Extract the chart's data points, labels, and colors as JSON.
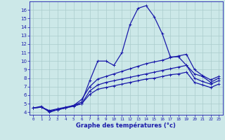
{
  "xlabel": "Graphe des températures (°c)",
  "x_ticks": [
    0,
    1,
    2,
    3,
    4,
    5,
    6,
    7,
    8,
    9,
    10,
    11,
    12,
    13,
    14,
    15,
    16,
    17,
    18,
    19,
    20,
    21,
    22,
    23
  ],
  "y_ticks": [
    4,
    5,
    6,
    7,
    8,
    9,
    10,
    11,
    12,
    13,
    14,
    15,
    16
  ],
  "ylim": [
    3.7,
    17.0
  ],
  "xlim": [
    -0.5,
    23.5
  ],
  "bg_color": "#cce8e8",
  "grid_color": "#aacccc",
  "line_color": "#1a1aaa",
  "series": [
    {
      "x": [
        0,
        1,
        2,
        3,
        4,
        5,
        6,
        7,
        8,
        9,
        10,
        11,
        12,
        13,
        14,
        15,
        16,
        17,
        18,
        19,
        20,
        21,
        22,
        23
      ],
      "y": [
        4.5,
        4.7,
        4.0,
        4.3,
        4.5,
        4.8,
        5.2,
        7.7,
        10.0,
        10.0,
        9.5,
        11.0,
        14.3,
        16.2,
        16.5,
        15.2,
        13.2,
        10.5,
        10.5,
        9.5,
        8.5,
        8.2,
        7.5,
        8.0
      ]
    },
    {
      "x": [
        0,
        1,
        2,
        3,
        4,
        5,
        6,
        7,
        8,
        9,
        10,
        11,
        12,
        13,
        14,
        15,
        16,
        17,
        18,
        19,
        20,
        21,
        22,
        23
      ],
      "y": [
        4.5,
        4.6,
        4.1,
        4.3,
        4.5,
        4.8,
        5.5,
        7.0,
        7.9,
        8.2,
        8.5,
        8.8,
        9.1,
        9.4,
        9.7,
        9.9,
        10.1,
        10.4,
        10.6,
        10.8,
        9.0,
        8.3,
        7.8,
        8.2
      ]
    },
    {
      "x": [
        0,
        1,
        2,
        3,
        4,
        5,
        6,
        7,
        8,
        9,
        10,
        11,
        12,
        13,
        14,
        15,
        16,
        17,
        18,
        19,
        20,
        21,
        22,
        23
      ],
      "y": [
        4.5,
        4.6,
        4.1,
        4.3,
        4.5,
        4.7,
        5.0,
        6.5,
        7.2,
        7.5,
        7.7,
        7.9,
        8.1,
        8.3,
        8.5,
        8.7,
        8.9,
        9.1,
        9.3,
        9.5,
        8.0,
        7.6,
        7.3,
        7.7
      ]
    },
    {
      "x": [
        0,
        1,
        2,
        3,
        4,
        5,
        6,
        7,
        8,
        9,
        10,
        11,
        12,
        13,
        14,
        15,
        16,
        17,
        18,
        19,
        20,
        21,
        22,
        23
      ],
      "y": [
        4.5,
        4.6,
        4.2,
        4.4,
        4.6,
        4.8,
        5.0,
        6.1,
        6.7,
        6.9,
        7.1,
        7.3,
        7.5,
        7.7,
        7.9,
        8.0,
        8.2,
        8.4,
        8.5,
        8.7,
        7.5,
        7.2,
        6.9,
        7.3
      ]
    }
  ]
}
